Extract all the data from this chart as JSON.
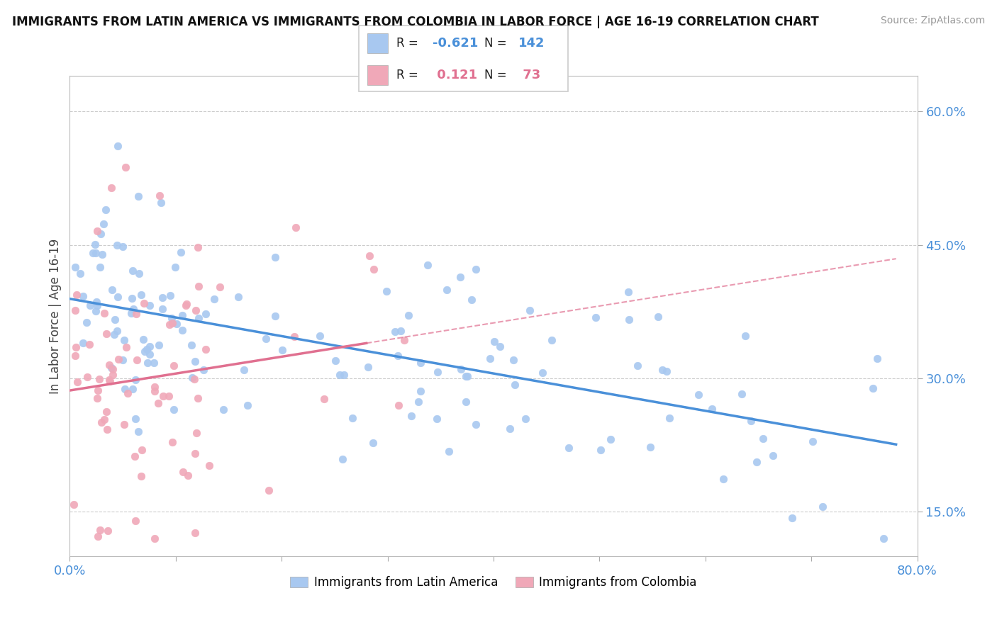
{
  "title": "IMMIGRANTS FROM LATIN AMERICA VS IMMIGRANTS FROM COLOMBIA IN LABOR FORCE | AGE 16-19 CORRELATION CHART",
  "source": "Source: ZipAtlas.com",
  "ylabel": "In Labor Force | Age 16-19",
  "xlim": [
    0.0,
    0.8
  ],
  "ylim": [
    0.1,
    0.64
  ],
  "xticks": [
    0.0,
    0.1,
    0.2,
    0.3,
    0.4,
    0.5,
    0.6,
    0.7,
    0.8
  ],
  "yticks": [
    0.15,
    0.3,
    0.45,
    0.6
  ],
  "ytick_labels": [
    "15.0%",
    "30.0%",
    "45.0%",
    "60.0%"
  ],
  "blue_R": -0.621,
  "blue_N": 142,
  "pink_R": 0.121,
  "pink_N": 73,
  "blue_color": "#a8c8f0",
  "pink_color": "#f0a8b8",
  "blue_line_color": "#4a90d9",
  "pink_line_color": "#e07090",
  "legend_label_blue": "Immigrants from Latin America",
  "legend_label_pink": "Immigrants from Colombia",
  "blue_scatter_seed": 42,
  "pink_scatter_seed": 7
}
